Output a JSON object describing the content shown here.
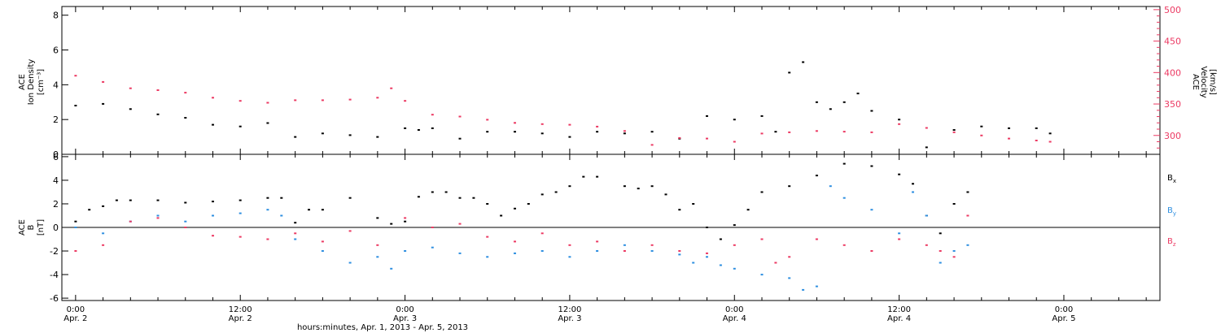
{
  "chart_data": [
    {
      "type": "scatter",
      "ylabel_lines": [
        "ACE",
        "Ion Density"
      ],
      "ylabel_unit": "[cm⁻³]",
      "ylim": [
        0,
        8.5
      ],
      "yticks": [
        0,
        2,
        4,
        6,
        8
      ],
      "y2label_lines": [
        "ACE",
        "Velocity"
      ],
      "y2label_unit": "[km/s]",
      "y2lim": [
        270,
        505
      ],
      "y2ticks": [
        300,
        350,
        400,
        450,
        500
      ],
      "series": [
        {
          "axis": "left",
          "color": "#000000",
          "points": [
            [
              0,
              2.8
            ],
            [
              2,
              2.9
            ],
            [
              4,
              2.6
            ],
            [
              6,
              2.3
            ],
            [
              8,
              2.1
            ],
            [
              10,
              1.7
            ],
            [
              12,
              1.6
            ],
            [
              14,
              1.8
            ],
            [
              16,
              1.0
            ],
            [
              18,
              1.2
            ],
            [
              20,
              1.1
            ],
            [
              22,
              1.0
            ],
            [
              24,
              1.5
            ],
            [
              25,
              1.4
            ],
            [
              26,
              1.5
            ],
            [
              28,
              0.9
            ],
            [
              30,
              1.3
            ],
            [
              32,
              1.3
            ],
            [
              34,
              1.2
            ],
            [
              36,
              1.0
            ],
            [
              38,
              1.3
            ],
            [
              40,
              1.2
            ],
            [
              42,
              1.3
            ],
            [
              44,
              0.9
            ],
            [
              46,
              2.2
            ],
            [
              48,
              2.0
            ],
            [
              50,
              2.2
            ],
            [
              51,
              1.3
            ],
            [
              52,
              4.7
            ],
            [
              53,
              5.3
            ],
            [
              54,
              3.0
            ],
            [
              55,
              2.6
            ],
            [
              56,
              3.0
            ],
            [
              57,
              3.5
            ],
            [
              58,
              2.5
            ],
            [
              60,
              2.0
            ],
            [
              62,
              0.4
            ],
            [
              64,
              1.4
            ],
            [
              66,
              1.6
            ],
            [
              68,
              1.5
            ],
            [
              70,
              1.5
            ],
            [
              71,
              1.2
            ]
          ]
        },
        {
          "axis": "right",
          "color": "#ec3a63",
          "points": [
            [
              0,
              395
            ],
            [
              2,
              385
            ],
            [
              4,
              375
            ],
            [
              6,
              372
            ],
            [
              8,
              368
            ],
            [
              10,
              360
            ],
            [
              12,
              355
            ],
            [
              14,
              352
            ],
            [
              16,
              356
            ],
            [
              18,
              356
            ],
            [
              20,
              357
            ],
            [
              22,
              360
            ],
            [
              23,
              375
            ],
            [
              24,
              355
            ],
            [
              26,
              333
            ],
            [
              28,
              330
            ],
            [
              30,
              325
            ],
            [
              32,
              320
            ],
            [
              34,
              318
            ],
            [
              36,
              317
            ],
            [
              38,
              314
            ],
            [
              40,
              307
            ],
            [
              42,
              285
            ],
            [
              44,
              296
            ],
            [
              46,
              295
            ],
            [
              48,
              290
            ],
            [
              50,
              303
            ],
            [
              52,
              305
            ],
            [
              54,
              307
            ],
            [
              56,
              306
            ],
            [
              58,
              305
            ],
            [
              60,
              318
            ],
            [
              62,
              312
            ],
            [
              64,
              305
            ],
            [
              66,
              300
            ],
            [
              68,
              295
            ],
            [
              70,
              292
            ],
            [
              71,
              290
            ]
          ]
        }
      ]
    },
    {
      "type": "scatter",
      "ylabel_lines": [
        "ACE",
        "B"
      ],
      "ylabel_unit": "[nT]",
      "ylim": [
        -6.2,
        6.2
      ],
      "yticks": [
        -6,
        -4,
        -2,
        0,
        2,
        4,
        6
      ],
      "series": [
        {
          "name": "Bx",
          "name_main": "B",
          "name_sub": "x",
          "color": "#000000",
          "points": [
            [
              0,
              0.5
            ],
            [
              1,
              1.5
            ],
            [
              2,
              1.8
            ],
            [
              3,
              2.3
            ],
            [
              4,
              2.3
            ],
            [
              6,
              2.3
            ],
            [
              8,
              2.1
            ],
            [
              10,
              2.2
            ],
            [
              12,
              2.3
            ],
            [
              14,
              2.5
            ],
            [
              15,
              2.5
            ],
            [
              16,
              0.4
            ],
            [
              17,
              1.5
            ],
            [
              18,
              1.5
            ],
            [
              20,
              2.5
            ],
            [
              22,
              0.8
            ],
            [
              23,
              0.3
            ],
            [
              24,
              0.5
            ],
            [
              25,
              2.6
            ],
            [
              26,
              3.0
            ],
            [
              27,
              3.0
            ],
            [
              28,
              2.5
            ],
            [
              29,
              2.5
            ],
            [
              30,
              2.0
            ],
            [
              31,
              1.0
            ],
            [
              32,
              1.6
            ],
            [
              33,
              2.0
            ],
            [
              34,
              2.8
            ],
            [
              35,
              3.0
            ],
            [
              36,
              3.5
            ],
            [
              37,
              4.3
            ],
            [
              38,
              4.3
            ],
            [
              40,
              3.5
            ],
            [
              41,
              3.3
            ],
            [
              42,
              3.5
            ],
            [
              43,
              2.8
            ],
            [
              44,
              1.5
            ],
            [
              45,
              2.0
            ],
            [
              46,
              0.0
            ],
            [
              47,
              -1.0
            ],
            [
              48,
              0.2
            ],
            [
              49,
              1.5
            ],
            [
              50,
              3.0
            ],
            [
              52,
              3.5
            ],
            [
              54,
              4.4
            ],
            [
              56,
              5.4
            ],
            [
              58,
              5.2
            ],
            [
              60,
              4.5
            ],
            [
              61,
              3.7
            ],
            [
              62,
              1.0
            ],
            [
              63,
              -0.5
            ],
            [
              64,
              2.0
            ],
            [
              65,
              3.0
            ]
          ]
        },
        {
          "name": "By",
          "name_main": "B",
          "name_sub": "y",
          "color": "#2e8fe0",
          "points": [
            [
              0,
              0.0
            ],
            [
              2,
              -0.5
            ],
            [
              4,
              0.5
            ],
            [
              6,
              1.0
            ],
            [
              8,
              0.5
            ],
            [
              10,
              1.0
            ],
            [
              12,
              1.2
            ],
            [
              14,
              1.5
            ],
            [
              15,
              1.0
            ],
            [
              16,
              -1.0
            ],
            [
              18,
              -2.0
            ],
            [
              20,
              -3.0
            ],
            [
              22,
              -2.5
            ],
            [
              23,
              -3.5
            ],
            [
              24,
              -2.0
            ],
            [
              26,
              -1.7
            ],
            [
              28,
              -2.2
            ],
            [
              30,
              -2.5
            ],
            [
              32,
              -2.2
            ],
            [
              34,
              -2.0
            ],
            [
              36,
              -2.5
            ],
            [
              38,
              -2.0
            ],
            [
              40,
              -1.5
            ],
            [
              42,
              -2.0
            ],
            [
              44,
              -2.3
            ],
            [
              45,
              -3.0
            ],
            [
              46,
              -2.5
            ],
            [
              47,
              -3.2
            ],
            [
              48,
              -3.5
            ],
            [
              50,
              -4.0
            ],
            [
              52,
              -4.3
            ],
            [
              53,
              -5.3
            ],
            [
              54,
              -5.0
            ],
            [
              55,
              3.5
            ],
            [
              56,
              2.5
            ],
            [
              58,
              1.5
            ],
            [
              60,
              -0.5
            ],
            [
              61,
              3.0
            ],
            [
              62,
              1.0
            ],
            [
              63,
              -3.0
            ],
            [
              64,
              -2.0
            ],
            [
              65,
              -1.5
            ]
          ]
        },
        {
          "name": "Bz",
          "name_main": "B",
          "name_sub": "z",
          "color": "#ec3a63",
          "points": [
            [
              0,
              -2.0
            ],
            [
              2,
              -1.5
            ],
            [
              4,
              0.5
            ],
            [
              6,
              0.8
            ],
            [
              8,
              0.0
            ],
            [
              10,
              -0.7
            ],
            [
              12,
              -0.8
            ],
            [
              14,
              -1.0
            ],
            [
              16,
              -0.5
            ],
            [
              18,
              -1.2
            ],
            [
              20,
              -0.3
            ],
            [
              22,
              -1.5
            ],
            [
              24,
              0.8
            ],
            [
              26,
              0.0
            ],
            [
              28,
              0.3
            ],
            [
              30,
              -0.8
            ],
            [
              32,
              -1.2
            ],
            [
              34,
              -0.5
            ],
            [
              36,
              -1.5
            ],
            [
              38,
              -1.2
            ],
            [
              40,
              -2.0
            ],
            [
              42,
              -1.5
            ],
            [
              44,
              -2.0
            ],
            [
              46,
              -2.2
            ],
            [
              48,
              -1.5
            ],
            [
              50,
              -1.0
            ],
            [
              51,
              -3.0
            ],
            [
              52,
              -2.5
            ],
            [
              54,
              -1.0
            ],
            [
              56,
              -1.5
            ],
            [
              58,
              -2.0
            ],
            [
              60,
              -1.0
            ],
            [
              62,
              -1.5
            ],
            [
              63,
              -2.0
            ],
            [
              64,
              -2.5
            ],
            [
              65,
              1.0
            ]
          ]
        }
      ]
    }
  ],
  "time_axis": {
    "xlim": [
      -1,
      79
    ],
    "ticks": [
      {
        "x": 0,
        "time": "0:00",
        "date": "Apr. 2"
      },
      {
        "x": 12,
        "time": "12:00",
        "date": "Apr. 2"
      },
      {
        "x": 24,
        "time": "0:00",
        "date": "Apr. 3"
      },
      {
        "x": 36,
        "time": "12:00",
        "date": "Apr. 3"
      },
      {
        "x": 48,
        "time": "0:00",
        "date": "Apr. 4"
      },
      {
        "x": 60,
        "time": "12:00",
        "date": "Apr. 4"
      },
      {
        "x": 72,
        "time": "0:00",
        "date": "Apr. 5"
      }
    ],
    "xlabel": "hours:minutes, Apr.  1, 2013 - Apr.  5, 2013"
  }
}
